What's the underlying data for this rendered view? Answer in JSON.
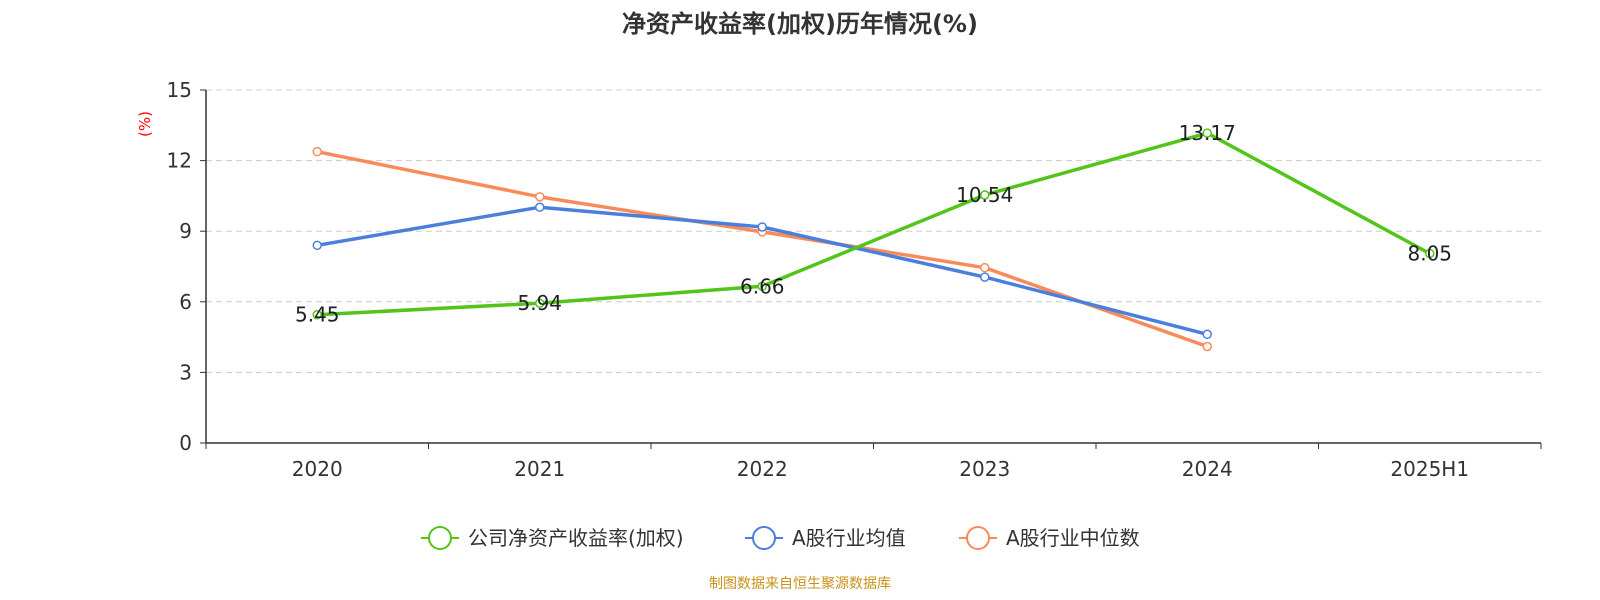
{
  "chart_data": {
    "type": "line",
    "title": "净资产收益率(加权)历年情况(%)",
    "ylabel": "(%)",
    "xlabel": "",
    "categories": [
      "2020",
      "2021",
      "2022",
      "2023",
      "2024",
      "2025H1"
    ],
    "ylim": [
      0,
      15
    ],
    "yticks": [
      0,
      3,
      6,
      9,
      12,
      15
    ],
    "grid": true,
    "legend_position": "bottom",
    "series": [
      {
        "name": "公司净资产收益率(加权)",
        "color": "#52c41a",
        "values": [
          5.45,
          5.94,
          6.66,
          10.54,
          13.17,
          8.05
        ],
        "labels": [
          "5.45",
          "5.94",
          "6.66",
          "10.54",
          "13.17",
          "8.05"
        ]
      },
      {
        "name": "A股行业均值",
        "color": "#4a7fdc",
        "values": [
          8.4,
          10.02,
          9.18,
          7.05,
          4.62,
          null
        ]
      },
      {
        "name": "A股行业中位数",
        "color": "#f98b5b",
        "values": [
          12.38,
          10.46,
          8.97,
          7.45,
          4.1,
          null
        ]
      }
    ]
  },
  "source": "制图数据来自恒生聚源数据库",
  "colors": {
    "axis": "#333333",
    "grid": "#cccccc",
    "ylabel": "#ff0000",
    "source": "#c8921a"
  }
}
